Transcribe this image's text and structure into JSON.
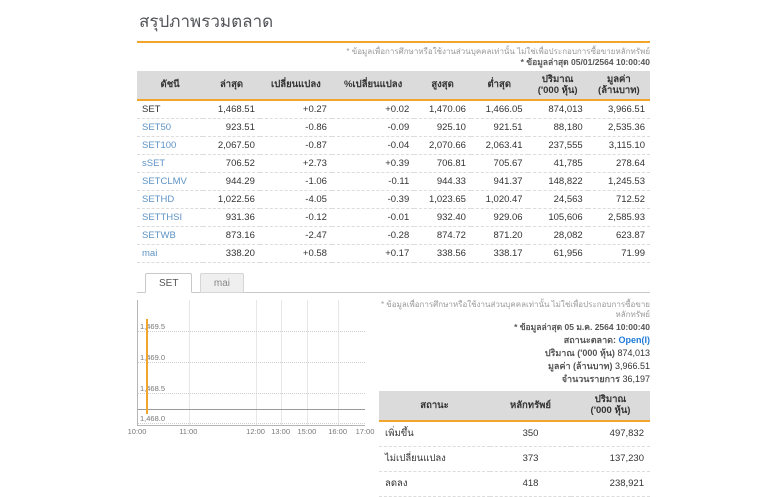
{
  "colors": {
    "accent_orange": "#F2A52C",
    "up_green": "#2AA437",
    "down_red": "#E03C3C",
    "link_blue": "#5E93C5",
    "status_blue": "#1E7BD7",
    "header_gray": "#DBDBDB"
  },
  "page": {
    "title": "สรุปภาพรวมตลาด",
    "disclaimer": "* ข้อมูลเพื่อการศึกษาหรือใช้งานส่วนบุคคลเท่านั้น ไม่ใช่เพื่อประกอบการซื้อขายหลักทรัพย์",
    "last_update": "* ข้อมูลล่าสุด 05/01/2564 10:00:40"
  },
  "index_table": {
    "headers": [
      "ดัชนี",
      "ล่าสุด",
      "เปลี่ยนแปลง",
      "%เปลี่ยนแปลง",
      "สูงสุด",
      "ต่ำสุด",
      "ปริมาณ\n('000 หุ้น)",
      "มูลค่า\n(ล้านบาท)"
    ],
    "rows": [
      {
        "name": "SET",
        "last": "1,468.51",
        "change": "+0.27",
        "pct": "+0.02",
        "high": "1,470.06",
        "low": "1,466.05",
        "volume": "874,013",
        "value": "3,966.51",
        "dir": "up",
        "link": false
      },
      {
        "name": "SET50",
        "last": "923.51",
        "change": "-0.86",
        "pct": "-0.09",
        "high": "925.10",
        "low": "921.51",
        "volume": "88,180",
        "value": "2,535.36",
        "dir": "down",
        "link": true
      },
      {
        "name": "SET100",
        "last": "2,067.50",
        "change": "-0.87",
        "pct": "-0.04",
        "high": "2,070.66",
        "low": "2,063.41",
        "volume": "237,555",
        "value": "3,115.10",
        "dir": "down",
        "link": true
      },
      {
        "name": "sSET",
        "last": "706.52",
        "change": "+2.73",
        "pct": "+0.39",
        "high": "706.81",
        "low": "705.67",
        "volume": "41,785",
        "value": "278.64",
        "dir": "up",
        "link": true
      },
      {
        "name": "SETCLMV",
        "last": "944.29",
        "change": "-1.06",
        "pct": "-0.11",
        "high": "944.33",
        "low": "941.37",
        "volume": "148,822",
        "value": "1,245.53",
        "dir": "down",
        "link": true
      },
      {
        "name": "SETHD",
        "last": "1,022.56",
        "change": "-4.05",
        "pct": "-0.39",
        "high": "1,023.65",
        "low": "1,020.47",
        "volume": "24,563",
        "value": "712.52",
        "dir": "down",
        "link": true
      },
      {
        "name": "SETTHSI",
        "last": "931.36",
        "change": "-0.12",
        "pct": "-0.01",
        "high": "932.40",
        "low": "929.06",
        "volume": "105,606",
        "value": "2,585.93",
        "dir": "down",
        "link": true
      },
      {
        "name": "SETWB",
        "last": "873.16",
        "change": "-2.47",
        "pct": "-0.28",
        "high": "874.72",
        "low": "871.20",
        "volume": "28,082",
        "value": "623.87",
        "dir": "down",
        "link": true
      },
      {
        "name": "mai",
        "last": "338.20",
        "change": "+0.58",
        "pct": "+0.17",
        "high": "338.56",
        "low": "338.17",
        "volume": "61,956",
        "value": "71.99",
        "dir": "up",
        "link": true
      }
    ]
  },
  "tabs": [
    {
      "label": "SET",
      "active": true
    },
    {
      "label": "mai",
      "active": false
    }
  ],
  "chart_data": {
    "type": "line",
    "title": "SET intraday price",
    "x_ticks": [
      {
        "label": "10:00",
        "pos": 0
      },
      {
        "label": "11:00",
        "pos": 22.5
      },
      {
        "label": "12:00",
        "pos": 52
      },
      {
        "label": "13:00",
        "pos": 63
      },
      {
        "label": "15:00",
        "pos": 74.5
      },
      {
        "label": "16:00",
        "pos": 88
      },
      {
        "label": "17:00",
        "pos": 100
      }
    ],
    "y_ticks": [
      {
        "label": "1,469.5",
        "value": 1469.5
      },
      {
        "label": "1,469.0",
        "value": 1469.0
      },
      {
        "label": "1,468.5",
        "value": 1468.5
      },
      {
        "label": "1,468.0",
        "value": 1468.0
      }
    ],
    "ylim": [
      1467.95,
      1470.0
    ],
    "prev_close": 1468.24,
    "grid": true,
    "series": [
      {
        "name": "SET",
        "color": "#F2A52C",
        "points": [
          {
            "time": "10:00",
            "pos": 3.5,
            "high": 1469.7,
            "low": 1468.15,
            "last": 1468.51
          }
        ]
      }
    ]
  },
  "market_info": {
    "disclaimer": "* ข้อมูลเพื่อการศึกษาหรือใช้งานส่วนบุคคลเท่านั้น ไม่ใช่เพื่อประกอบการซื้อขายหลักทรัพย์",
    "last_update": "* ข้อมูลล่าสุด 05 ม.ค. 2564 10:00:40",
    "status_label": "สถานะตลาด:",
    "status_value": "Open(I)",
    "volume_label": "ปริมาณ ('000 หุ้น)",
    "volume_value": "874,013",
    "value_label": "มูลค่า (ล้านบาท)",
    "value_value": "3,966.51",
    "transactions_label": "จำนวนรายการ",
    "transactions_value": "36,197"
  },
  "status_table": {
    "headers": [
      "สถานะ",
      "หลักทรัพย์",
      "ปริมาณ\n('000 หุ้น)"
    ],
    "rows": [
      {
        "label": "เพิ่มขึ้น",
        "securities": "350",
        "volume": "497,832",
        "dir": "up"
      },
      {
        "label": "ไม่เปลี่ยนแปลง",
        "securities": "373",
        "volume": "137,230",
        "dir": "flat"
      },
      {
        "label": "ลดลง",
        "securities": "418",
        "volume": "238,921",
        "dir": "down"
      }
    ]
  }
}
